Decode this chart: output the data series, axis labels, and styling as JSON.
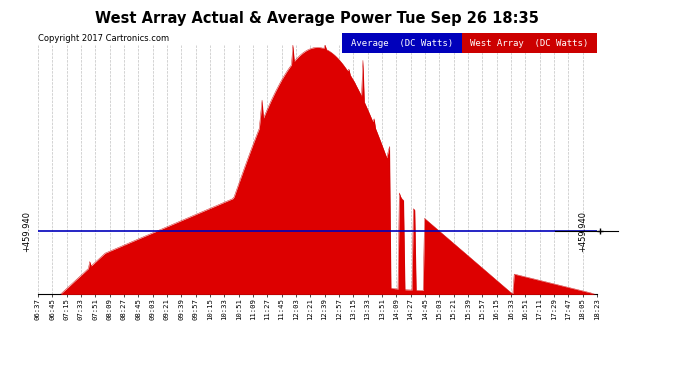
{
  "title": "West Array Actual & Average Power Tue Sep 26 18:35",
  "copyright": "Copyright 2017 Cartronics.com",
  "legend_labels": [
    "Average  (DC Watts)",
    "West Array  (DC Watts)"
  ],
  "legend_colors": [
    "#0000bb",
    "#cc0000"
  ],
  "ymin": 0.0,
  "ymax": 1817.4,
  "yticks": [
    0.0,
    151.4,
    302.9,
    454.3,
    605.8,
    757.2,
    908.7,
    1060.1,
    1211.6,
    1363.0,
    1514.5,
    1665.9,
    1817.4
  ],
  "hline_value": 459.94,
  "hline_label": "+459.940",
  "bg_color": "#ffffff",
  "grid_color": "#999999",
  "x_labels": [
    "06:37",
    "06:45",
    "07:15",
    "07:33",
    "07:51",
    "08:09",
    "08:27",
    "08:45",
    "09:03",
    "09:21",
    "09:39",
    "09:57",
    "10:15",
    "10:33",
    "10:51",
    "11:09",
    "11:27",
    "11:45",
    "12:03",
    "12:21",
    "12:39",
    "12:57",
    "13:15",
    "13:33",
    "13:51",
    "14:09",
    "14:27",
    "14:45",
    "15:03",
    "15:21",
    "15:39",
    "15:57",
    "16:15",
    "16:33",
    "16:51",
    "17:11",
    "17:29",
    "17:47",
    "18:05",
    "18:23"
  ]
}
